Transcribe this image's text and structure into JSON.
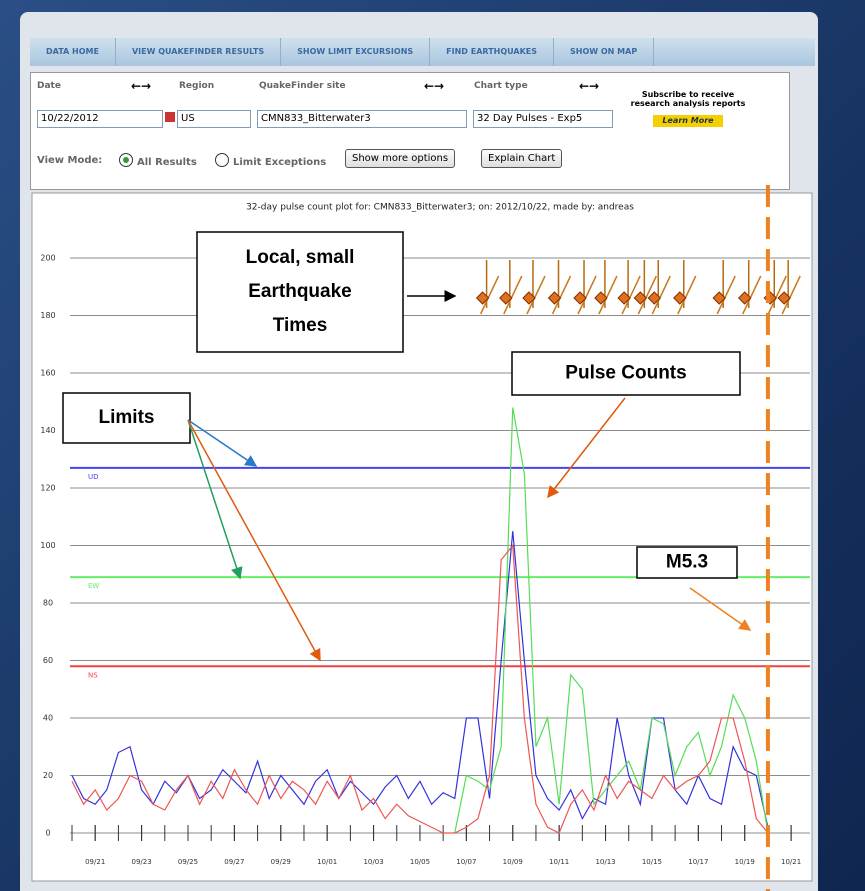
{
  "nav": [
    "DATA HOME",
    "VIEW QUAKEFINDER RESULTS",
    "SHOW LIMIT EXCURSIONS",
    "FIND EARTHQUAKES",
    "SHOW ON MAP"
  ],
  "form": {
    "date_label": "Date",
    "region_label": "Region",
    "site_label": "QuakeFinder site",
    "chart_type_label": "Chart type",
    "arrows": "←→",
    "date": "10/22/2012",
    "region": "US",
    "site": "CMN833_Bitterwater3",
    "chart_type": "32 Day Pulses - Exp5",
    "subscribe": "Subscribe to receive research analysis reports",
    "learn_more": "Learn More",
    "view_mode_label": "View Mode:",
    "all_results": "All Results",
    "limit_exceptions": "Limit Exceptions",
    "more_options": "Show more options",
    "explain": "Explain Chart"
  },
  "chart_data": {
    "type": "line",
    "title": "32-day pulse count plot for: CMN833_Bitterwater3; on: 2012/10/22, made by: andreas",
    "x": [
      0,
      0.5,
      1,
      1.5,
      2,
      2.5,
      3,
      3.5,
      4,
      4.5,
      5,
      5.5,
      6,
      6.5,
      7,
      7.5,
      8,
      8.5,
      9,
      9.5,
      10,
      10.5,
      11,
      11.5,
      12,
      12.5,
      13,
      13.5,
      14,
      14.5,
      15,
      15.5,
      16,
      16.5,
      17,
      17.5,
      18,
      18.5,
      19,
      19.5,
      20,
      20.5,
      21,
      21.5,
      22,
      22.5,
      23,
      23.5,
      24,
      24.5,
      25,
      25.5,
      26,
      26.5,
      27,
      27.5,
      28,
      28.5,
      29,
      29.5,
      30,
      30.5,
      31
    ],
    "xlim": [
      0,
      31.9
    ],
    "xticks": [
      {
        "value": 1,
        "label": "09/21"
      },
      {
        "value": 3,
        "label": "09/23"
      },
      {
        "value": 5,
        "label": "09/25"
      },
      {
        "value": 7,
        "label": "09/27"
      },
      {
        "value": 9,
        "label": "09/29"
      },
      {
        "value": 11,
        "label": "10/01"
      },
      {
        "value": 13,
        "label": "10/03"
      },
      {
        "value": 15,
        "label": "10/05"
      },
      {
        "value": 17,
        "label": "10/07"
      },
      {
        "value": 19,
        "label": "10/09"
      },
      {
        "value": 21,
        "label": "10/11"
      },
      {
        "value": 23,
        "label": "10/13"
      },
      {
        "value": 25,
        "label": "10/15"
      },
      {
        "value": 27,
        "label": "10/17"
      },
      {
        "value": 29,
        "label": "10/19"
      },
      {
        "value": 31,
        "label": "10/21"
      }
    ],
    "ylim": [
      0,
      200
    ],
    "yticks": [
      0,
      20,
      40,
      60,
      80,
      100,
      120,
      140,
      160,
      180,
      200
    ],
    "grid": true,
    "series": [
      {
        "name": "UD",
        "color": "#3333dd",
        "values": [
          20,
          12,
          10,
          15,
          28,
          30,
          15,
          10,
          18,
          14,
          20,
          12,
          15,
          22,
          18,
          14,
          25,
          12,
          20,
          15,
          10,
          18,
          22,
          12,
          18,
          14,
          10,
          16,
          20,
          12,
          18,
          10,
          14,
          12,
          40,
          40,
          12,
          60,
          105,
          60,
          20,
          12,
          8,
          15,
          5,
          12,
          10,
          40,
          20,
          10,
          40,
          40,
          15,
          10,
          20,
          12,
          10,
          30,
          22,
          20,
          2,
          null,
          null
        ]
      },
      {
        "name": "EW",
        "color": "#55dd55",
        "values": [
          null,
          null,
          null,
          null,
          null,
          null,
          null,
          null,
          null,
          null,
          null,
          null,
          null,
          null,
          null,
          null,
          null,
          null,
          null,
          null,
          null,
          null,
          null,
          null,
          null,
          null,
          null,
          null,
          null,
          null,
          null,
          null,
          null,
          0,
          20,
          18,
          15,
          30,
          148,
          125,
          30,
          40,
          10,
          55,
          50,
          10,
          15,
          20,
          25,
          15,
          40,
          38,
          20,
          30,
          35,
          20,
          30,
          48,
          40,
          25,
          0,
          null,
          null
        ]
      },
      {
        "name": "NS",
        "color": "#ee5555",
        "values": [
          18,
          10,
          15,
          8,
          12,
          20,
          18,
          10,
          8,
          15,
          20,
          10,
          18,
          12,
          22,
          15,
          10,
          20,
          12,
          18,
          15,
          10,
          18,
          12,
          20,
          8,
          12,
          5,
          10,
          6,
          4,
          2,
          0,
          0,
          2,
          5,
          20,
          95,
          100,
          40,
          10,
          2,
          0,
          10,
          15,
          8,
          20,
          12,
          18,
          15,
          12,
          20,
          15,
          18,
          20,
          25,
          40,
          40,
          25,
          5,
          0,
          null,
          null
        ]
      }
    ],
    "limits": [
      {
        "name": "UD",
        "value": 127,
        "color": "#4444ee"
      },
      {
        "name": "EW",
        "value": 89,
        "color": "#66ee66"
      },
      {
        "name": "NS",
        "value": 58,
        "color": "#ee4444"
      }
    ],
    "quake_times": [
      17.7,
      18.7,
      19.7,
      20.8,
      21.9,
      22.8,
      23.8,
      24.5,
      25.1,
      26.2,
      27.9,
      29.0,
      30.1,
      30.7
    ],
    "event": {
      "label": "M5.3",
      "x": 30.0
    },
    "annotations": [
      {
        "lines": [
          "Local, small",
          "Earthquake",
          "Times"
        ]
      },
      {
        "lines": [
          "Limits"
        ]
      },
      {
        "lines": [
          "Pulse Counts"
        ]
      },
      {
        "lines": [
          "M5.3"
        ]
      }
    ]
  }
}
